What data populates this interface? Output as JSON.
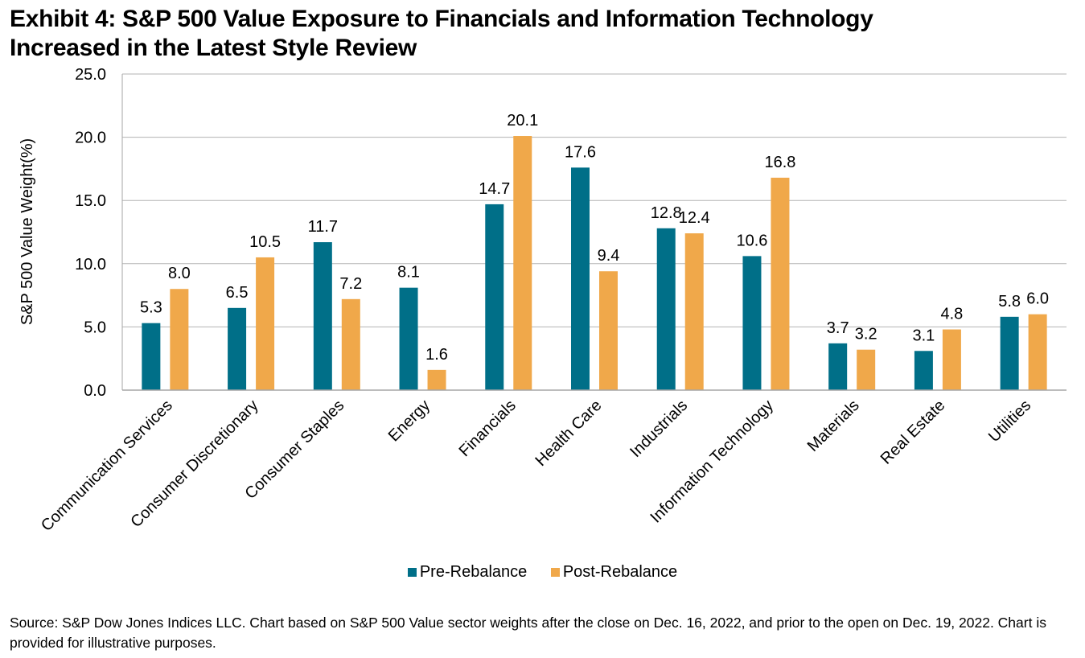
{
  "title_lines": [
    "Exhibit 4: S&P 500 Value Exposure to Financials and Information Technology",
    "Increased in the Latest Style Review"
  ],
  "source": "Source: S&P Dow Jones Indices LLC. Chart based on S&P 500 Value sector weights after the close on Dec. 16, 2022, and prior to the open on Dec. 19, 2022. Chart is provided for illustrative purposes.",
  "chart_data": {
    "type": "bar",
    "title": "Exhibit 4: S&P 500 Value Exposure to Financials and Information Technology Increased in the Latest Style Review",
    "xlabel": "",
    "ylabel": "S&P 500 Value Weight(%)",
    "ylim": [
      0,
      25
    ],
    "yticks": [
      "0.0",
      "5.0",
      "10.0",
      "15.0",
      "20.0",
      "25.0"
    ],
    "grid": true,
    "legend_position": "bottom",
    "categories": [
      "Communication Services",
      "Consumer Discretionary",
      "Consumer Staples",
      "Energy",
      "Financials",
      "Health Care",
      "Industrials",
      "Information Technology",
      "Materials",
      "Real Estate",
      "Utilities"
    ],
    "series": [
      {
        "name": "Pre-Rebalance",
        "color": "#006F88",
        "values": [
          5.3,
          6.5,
          11.7,
          8.1,
          14.7,
          17.6,
          12.8,
          10.6,
          3.7,
          3.1,
          5.8
        ]
      },
      {
        "name": "Post-Rebalance",
        "color": "#F0A84A",
        "values": [
          8.0,
          10.5,
          7.2,
          1.6,
          20.1,
          9.4,
          12.4,
          16.8,
          3.2,
          4.8,
          6.0
        ]
      }
    ]
  }
}
